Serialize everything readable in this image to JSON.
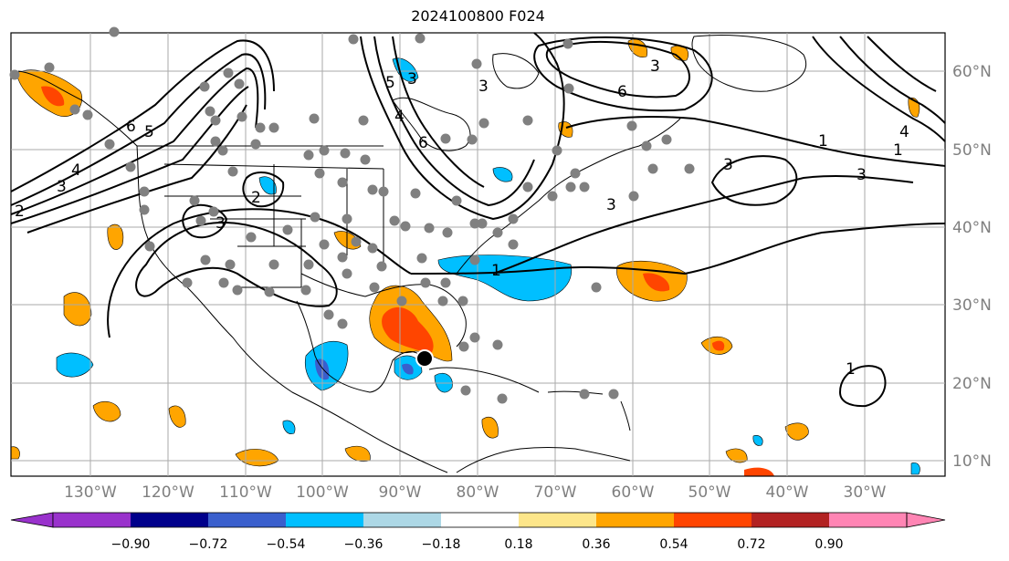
{
  "title": "2024100800 F024",
  "map": {
    "lon_labels": [
      "130°W",
      "120°W",
      "110°W",
      "100°W",
      "90°W",
      "80°W",
      "70°W",
      "60°W",
      "50°W",
      "40°W",
      "30°W"
    ],
    "lat_labels": [
      "60°N",
      "50°N",
      "40°N",
      "30°N",
      "20°N",
      "10°N"
    ],
    "storm_center": {
      "lon": -86.5,
      "lat": 23.0
    },
    "contour_labels": [
      "6",
      "5",
      "4",
      "3",
      "2",
      "1",
      "3",
      "5",
      "4",
      "3",
      "6",
      "3",
      "6",
      "1",
      "3",
      "3",
      "1",
      "2",
      "3",
      "3",
      "4",
      "1"
    ]
  },
  "colorbar": {
    "ticks": [
      "−0.90",
      "−0.72",
      "−0.54",
      "−0.36",
      "−0.18",
      "0.18",
      "0.36",
      "0.54",
      "0.72",
      "0.90"
    ],
    "colors": [
      "#9932cc",
      "#00008b",
      "#3a5fcd",
      "#00bfff",
      "#add8e6",
      "#ffffff",
      "#fde68a",
      "#ffa500",
      "#ff4500",
      "#b22222",
      "#ff85b4"
    ]
  }
}
